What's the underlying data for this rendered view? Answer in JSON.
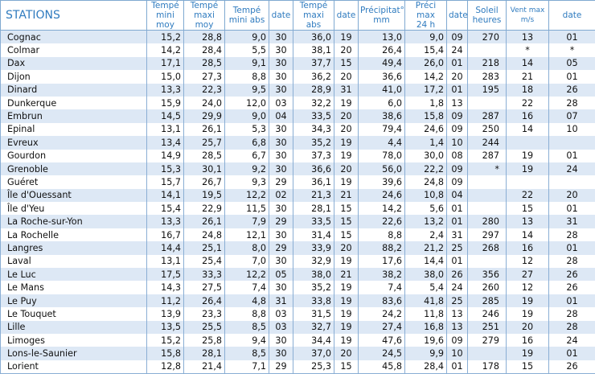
{
  "headers": {
    "station": "STATIONS",
    "tmin_moy": [
      "Tempé",
      "mini moy"
    ],
    "tmax_moy": [
      "Tempé",
      "maxi moy"
    ],
    "tmin_abs": [
      "Tempé",
      "mini abs"
    ],
    "date1": "date",
    "tmax_abs": [
      "Tempé",
      "maxi abs"
    ],
    "date2": "date",
    "precip": [
      "Précipitat°",
      "mm"
    ],
    "precip_max": [
      "Préci max",
      "24 h"
    ],
    "date3": "date",
    "soleil": [
      "Soleil",
      "heures"
    ],
    "vent": [
      "Vent max",
      "m/s"
    ],
    "date4": "date"
  },
  "rows": [
    [
      "Cognac",
      "15,2",
      "28,8",
      "9,0",
      "30",
      "36,0",
      "19",
      "13,0",
      "9,0",
      "09",
      "270",
      "13",
      "01"
    ],
    [
      "Colmar",
      "14,2",
      "28,4",
      "5,5",
      "30",
      "38,1",
      "20",
      "26,4",
      "15,4",
      "24",
      "",
      "*",
      "*"
    ],
    [
      "Dax",
      "17,1",
      "28,5",
      "9,1",
      "30",
      "37,7",
      "15",
      "49,4",
      "26,0",
      "01",
      "218",
      "14",
      "05"
    ],
    [
      "Dijon",
      "15,0",
      "27,3",
      "8,8",
      "30",
      "36,2",
      "20",
      "36,6",
      "14,2",
      "20",
      "283",
      "21",
      "01"
    ],
    [
      "Dinard",
      "13,3",
      "22,3",
      "9,5",
      "30",
      "28,9",
      "31",
      "41,0",
      "17,2",
      "01",
      "195",
      "18",
      "26"
    ],
    [
      "Dunkerque",
      "15,9",
      "24,0",
      "12,0",
      "03",
      "32,2",
      "19",
      "6,0",
      "1,8",
      "13",
      "",
      "22",
      "28"
    ],
    [
      "Embrun",
      "14,5",
      "29,9",
      "9,0",
      "04",
      "33,5",
      "20",
      "38,6",
      "15,8",
      "09",
      "287",
      "16",
      "07"
    ],
    [
      "Epinal",
      "13,1",
      "26,1",
      "5,3",
      "30",
      "34,3",
      "20",
      "79,4",
      "24,6",
      "09",
      "250",
      "14",
      "10"
    ],
    [
      "Evreux",
      "13,4",
      "25,7",
      "6,8",
      "30",
      "35,2",
      "19",
      "4,4",
      "1,4",
      "10",
      "244",
      "",
      ""
    ],
    [
      "Gourdon",
      "14,9",
      "28,5",
      "6,7",
      "30",
      "37,3",
      "19",
      "78,0",
      "30,0",
      "08",
      "287",
      "19",
      "01"
    ],
    [
      "Grenoble",
      "15,3",
      "30,1",
      "9,2",
      "30",
      "36,6",
      "20",
      "56,0",
      "22,2",
      "09",
      "*",
      "19",
      "24"
    ],
    [
      "Guéret",
      "15,7",
      "26,7",
      "9,3",
      "29",
      "36,1",
      "19",
      "39,6",
      "24,8",
      "09",
      "",
      "",
      ""
    ],
    [
      "Île d'Ouessant",
      "14,1",
      "19,5",
      "12,2",
      "02",
      "21,3",
      "21",
      "24,6",
      "10,8",
      "04",
      "",
      "22",
      "20"
    ],
    [
      "Île d'Yeu",
      "15,4",
      "22,9",
      "11,5",
      "30",
      "28,1",
      "15",
      "14,2",
      "5,6",
      "01",
      "",
      "15",
      "01"
    ],
    [
      "La Roche-sur-Yon",
      "13,3",
      "26,1",
      "7,9",
      "29",
      "33,5",
      "15",
      "22,6",
      "13,2",
      "01",
      "280",
      "13",
      "31"
    ],
    [
      "La Rochelle",
      "16,7",
      "24,8",
      "12,1",
      "30",
      "31,4",
      "15",
      "8,8",
      "2,4",
      "31",
      "297",
      "14",
      "28"
    ],
    [
      "Langres",
      "14,4",
      "25,1",
      "8,0",
      "29",
      "33,9",
      "20",
      "88,2",
      "21,2",
      "25",
      "268",
      "16",
      "01"
    ],
    [
      "Laval",
      "13,1",
      "25,4",
      "7,0",
      "30",
      "32,9",
      "19",
      "17,6",
      "14,4",
      "01",
      "",
      "12",
      "28"
    ],
    [
      "Le Luc",
      "17,5",
      "33,3",
      "12,2",
      "05",
      "38,0",
      "21",
      "38,2",
      "38,0",
      "26",
      "356",
      "27",
      "26"
    ],
    [
      "Le Mans",
      "14,3",
      "27,5",
      "7,4",
      "30",
      "35,2",
      "19",
      "7,4",
      "5,4",
      "24",
      "260",
      "12",
      "26"
    ],
    [
      "Le Puy",
      "11,2",
      "26,4",
      "4,8",
      "31",
      "33,8",
      "19",
      "83,6",
      "41,8",
      "25",
      "285",
      "19",
      "01"
    ],
    [
      "Le Touquet",
      "13,9",
      "23,3",
      "8,8",
      "03",
      "31,5",
      "19",
      "24,2",
      "11,8",
      "13",
      "246",
      "19",
      "28"
    ],
    [
      "Lille",
      "13,5",
      "25,5",
      "8,5",
      "03",
      "32,7",
      "19",
      "27,4",
      "16,8",
      "13",
      "251",
      "20",
      "28"
    ],
    [
      "Limoges",
      "15,2",
      "25,8",
      "9,4",
      "30",
      "34,4",
      "19",
      "47,6",
      "19,6",
      "09",
      "279",
      "16",
      "24"
    ],
    [
      "Lons-le-Saunier",
      "15,8",
      "28,1",
      "8,5",
      "30",
      "37,0",
      "20",
      "24,5",
      "9,9",
      "10",
      "",
      "19",
      "01"
    ],
    [
      "Lorient",
      "12,8",
      "21,4",
      "7,1",
      "29",
      "25,3",
      "15",
      "45,8",
      "28,4",
      "01",
      "178",
      "15",
      "26"
    ]
  ]
}
